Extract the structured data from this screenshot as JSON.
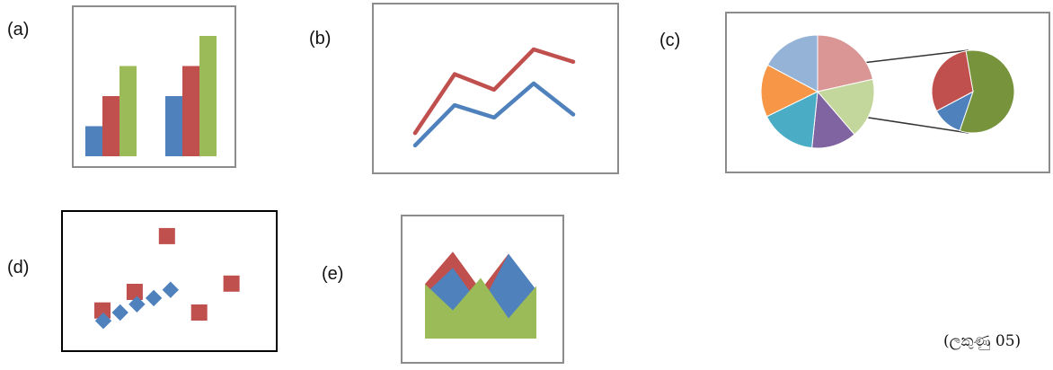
{
  "labels": {
    "a": "(a)",
    "b": "(b)",
    "c": "(c)",
    "d": "(d)",
    "e": "(e)"
  },
  "caption": "(ලකුණු 05)",
  "colors": {
    "blue": "#4f81bd",
    "red": "#c0504d",
    "green": "#9bbb59",
    "frame": "#8c8c8c",
    "frame_dark": "#000000"
  },
  "chart_data": [
    {
      "id": "a",
      "type": "bar",
      "categories": [
        "",
        ""
      ],
      "series": [
        {
          "values": [
            1,
            2
          ]
        },
        {
          "values": [
            2,
            3
          ]
        },
        {
          "values": [
            3,
            4
          ]
        }
      ],
      "ylim": [
        0,
        4
      ]
    },
    {
      "id": "b",
      "type": "line",
      "x": [
        1,
        2,
        3,
        4,
        5
      ],
      "series": [
        {
          "values": [
            1.3,
            3.2,
            2.7,
            4.0,
            3.6
          ]
        },
        {
          "values": [
            0.9,
            2.2,
            1.8,
            2.9,
            1.9
          ]
        }
      ],
      "ylim": [
        0,
        5
      ]
    },
    {
      "id": "c",
      "type": "pie",
      "slices": [
        {
          "color": "#d99694",
          "value": 20
        },
        {
          "color": "#c3d69b",
          "value": 16
        },
        {
          "color": "#8064a2",
          "value": 12
        },
        {
          "color": "#4bacc6",
          "value": 15
        },
        {
          "color": "#f79646",
          "value": 14
        },
        {
          "color": "#95b3d7",
          "value": 16
        }
      ],
      "detail_slices": [
        {
          "color": "#77933c",
          "value": 58
        },
        {
          "color": "#4f81bd",
          "value": 12
        },
        {
          "color": "#c0504d",
          "value": 30
        }
      ]
    },
    {
      "id": "d",
      "type": "scatter",
      "series": [
        {
          "marker": "square",
          "points": [
            [
              1,
              2.1
            ],
            [
              2,
              3.0
            ],
            [
              3,
              5.7
            ],
            [
              4,
              2.0
            ],
            [
              5,
              3.4
            ]
          ]
        },
        {
          "marker": "diamond",
          "points": [
            [
              1,
              1.6
            ],
            [
              2,
              2.0
            ],
            [
              3,
              2.4
            ],
            [
              4,
              2.7
            ],
            [
              5,
              3.1
            ]
          ]
        }
      ]
    },
    {
      "id": "e",
      "type": "area",
      "x": [
        0,
        1,
        2,
        3,
        4
      ],
      "series": [
        {
          "values": [
            2.2,
            3.5,
            1.6,
            4.2,
            2.4
          ]
        },
        {
          "values": [
            2.7,
            4.3,
            2.4,
            4.2,
            2.0
          ]
        },
        {
          "values": [
            2.7,
            1.4,
            3.0,
            1.0,
            2.6
          ]
        }
      ]
    }
  ]
}
